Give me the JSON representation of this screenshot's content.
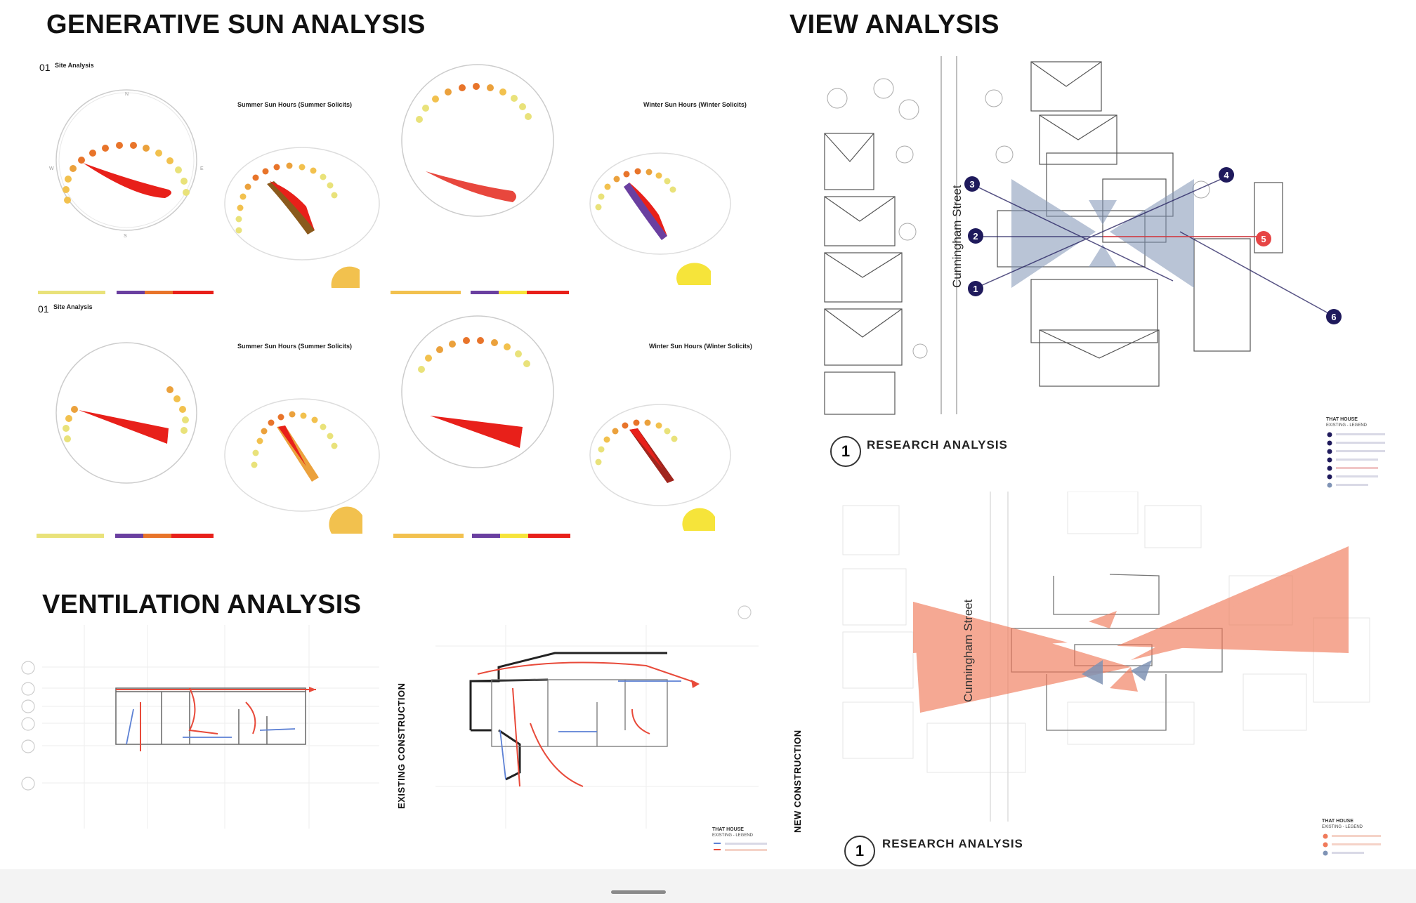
{
  "headings": {
    "sun": "GENERATIVE SUN ANALYSIS",
    "view": "VIEW ANALYSIS",
    "ventilation": "VENTILATION ANALYSIS"
  },
  "sun": {
    "section_number": "01",
    "section_title": "Site Analysis",
    "summer_title": "Summer Sun Hours (Summer Solicits)",
    "winter_title": "Winter Sun Hours (Winter Solicits)",
    "compass": {
      "n": "N",
      "s": "S",
      "e": "E",
      "w": "W"
    },
    "colors": {
      "sun_path": "#f2c14e",
      "sun_path_pale": "#e9e27a",
      "wedge": "#e8201a",
      "purple": "#6a3fa0",
      "yellow": "#f6e43a"
    }
  },
  "view": {
    "street_label": "Cunningham Street",
    "research_number": "1",
    "research_label": "RESEARCH ANALYSIS",
    "legend_title": "THAT HOUSE",
    "legend_subtitle": "EXISTING - LEGEND",
    "viewpoints": [
      "1",
      "2",
      "3",
      "4",
      "5",
      "6"
    ],
    "colors": {
      "navy": "#1f1a5c",
      "red": "#e64545",
      "wedge_blue": "#7f93b5",
      "wedge_salmon": "#f07a5a"
    }
  },
  "ventilation": {
    "existing_label": "EXISTING CONSTRUCTION",
    "new_label": "NEW CONSTRUCTION",
    "legend_title": "THAT HOUSE",
    "legend_subtitle": "EXISTING - LEGEND"
  }
}
